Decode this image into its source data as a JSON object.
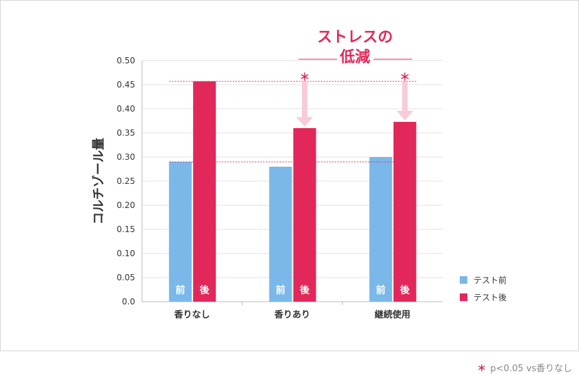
{
  "chart_data": {
    "type": "bar",
    "ylabel": "コルチゾール量",
    "ylim": [
      0,
      0.5
    ],
    "yticks": [
      "0.0",
      "0.05",
      "0.10",
      "0.15",
      "0.20",
      "0.25",
      "0.30",
      "0.35",
      "0.40",
      "0.45",
      "0.50"
    ],
    "categories": [
      "香りなし",
      "香りあり",
      "継続使用"
    ],
    "series": [
      {
        "name": "テスト前",
        "bar_label": "前",
        "color": "#7ab8ea",
        "values": [
          0.29,
          0.28,
          0.3
        ]
      },
      {
        "name": "テスト後",
        "bar_label": "後",
        "color": "#e2285a",
        "values": [
          0.457,
          0.36,
          0.373
        ]
      }
    ],
    "reference_lines": [
      0.457,
      0.29
    ],
    "significance_marker": "＊",
    "annotation": {
      "line1": "ストレスの",
      "line2": "低減"
    },
    "legend_position": "right"
  },
  "footnote": {
    "marker": "＊",
    "text": "p<0.05 vs香りなし"
  }
}
